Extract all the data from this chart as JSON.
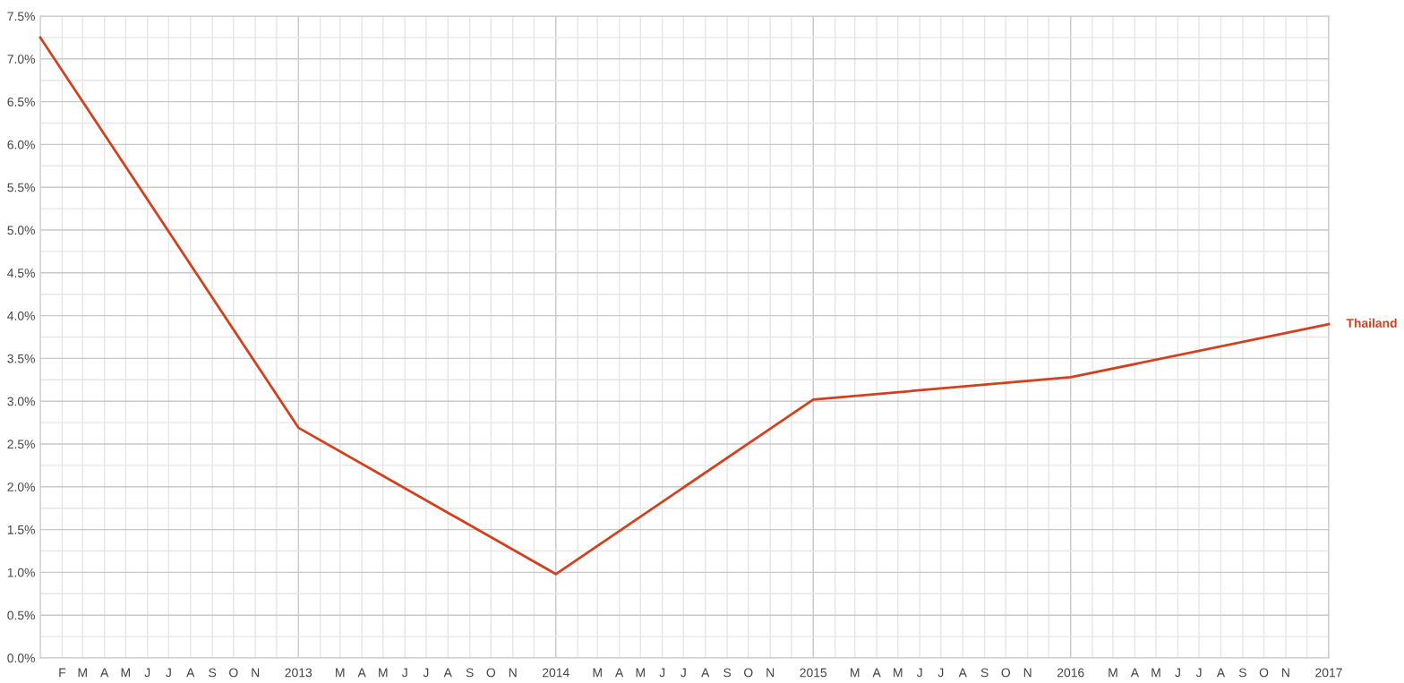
{
  "chart_data": {
    "type": "line",
    "x": [
      "2012-01",
      "2013-01",
      "2014-01",
      "2015-01",
      "2016-01",
      "2017-01"
    ],
    "series": [
      {
        "name": "Thailand",
        "color": "#d2401e",
        "values": [
          7.25,
          2.69,
          0.98,
          3.02,
          3.28,
          3.9
        ]
      }
    ],
    "xlim": [
      "2012-01",
      "2017-01"
    ],
    "xticks": [
      {
        "value": "2012-01",
        "label": null
      },
      {
        "value": "2012-02",
        "label": "F"
      },
      {
        "value": "2012-03",
        "label": "M"
      },
      {
        "value": "2012-04",
        "label": "A"
      },
      {
        "value": "2012-05",
        "label": "M"
      },
      {
        "value": "2012-06",
        "label": "J"
      },
      {
        "value": "2012-07",
        "label": "J"
      },
      {
        "value": "2012-08",
        "label": "A"
      },
      {
        "value": "2012-09",
        "label": "S"
      },
      {
        "value": "2012-10",
        "label": "O"
      },
      {
        "value": "2012-11",
        "label": "N"
      },
      {
        "value": "2012-12",
        "label": null
      },
      {
        "value": "2013-01",
        "label": "2013"
      },
      {
        "value": "2013-02",
        "label": null
      },
      {
        "value": "2013-03",
        "label": "M"
      },
      {
        "value": "2013-04",
        "label": "A"
      },
      {
        "value": "2013-05",
        "label": "M"
      },
      {
        "value": "2013-06",
        "label": "J"
      },
      {
        "value": "2013-07",
        "label": "J"
      },
      {
        "value": "2013-08",
        "label": "A"
      },
      {
        "value": "2013-09",
        "label": "S"
      },
      {
        "value": "2013-10",
        "label": "O"
      },
      {
        "value": "2013-11",
        "label": "N"
      },
      {
        "value": "2013-12",
        "label": null
      },
      {
        "value": "2014-01",
        "label": "2014"
      },
      {
        "value": "2014-02",
        "label": null
      },
      {
        "value": "2014-03",
        "label": "M"
      },
      {
        "value": "2014-04",
        "label": "A"
      },
      {
        "value": "2014-05",
        "label": "M"
      },
      {
        "value": "2014-06",
        "label": "J"
      },
      {
        "value": "2014-07",
        "label": "J"
      },
      {
        "value": "2014-08",
        "label": "A"
      },
      {
        "value": "2014-09",
        "label": "S"
      },
      {
        "value": "2014-10",
        "label": "O"
      },
      {
        "value": "2014-11",
        "label": "N"
      },
      {
        "value": "2014-12",
        "label": null
      },
      {
        "value": "2015-01",
        "label": "2015"
      },
      {
        "value": "2015-02",
        "label": null
      },
      {
        "value": "2015-03",
        "label": "M"
      },
      {
        "value": "2015-04",
        "label": "A"
      },
      {
        "value": "2015-05",
        "label": "M"
      },
      {
        "value": "2015-06",
        "label": "J"
      },
      {
        "value": "2015-07",
        "label": "J"
      },
      {
        "value": "2015-08",
        "label": "A"
      },
      {
        "value": "2015-09",
        "label": "S"
      },
      {
        "value": "2015-10",
        "label": "O"
      },
      {
        "value": "2015-11",
        "label": "N"
      },
      {
        "value": "2015-12",
        "label": null
      },
      {
        "value": "2016-01",
        "label": "2016"
      },
      {
        "value": "2016-02",
        "label": null
      },
      {
        "value": "2016-03",
        "label": "M"
      },
      {
        "value": "2016-04",
        "label": "A"
      },
      {
        "value": "2016-05",
        "label": "M"
      },
      {
        "value": "2016-06",
        "label": "J"
      },
      {
        "value": "2016-07",
        "label": "J"
      },
      {
        "value": "2016-08",
        "label": "A"
      },
      {
        "value": "2016-09",
        "label": "S"
      },
      {
        "value": "2016-10",
        "label": "O"
      },
      {
        "value": "2016-11",
        "label": "N"
      },
      {
        "value": "2016-12",
        "label": null
      },
      {
        "value": "2017-01",
        "label": "2017"
      }
    ],
    "ylim": [
      0,
      7.5
    ],
    "yticks": [
      {
        "value": 0,
        "label": "0.0%"
      },
      {
        "value": 0.25,
        "label": null
      },
      {
        "value": 0.5,
        "label": "0.5%"
      },
      {
        "value": 0.75,
        "label": null
      },
      {
        "value": 1.0,
        "label": "1.0%"
      },
      {
        "value": 1.25,
        "label": null
      },
      {
        "value": 1.5,
        "label": "1.5%"
      },
      {
        "value": 1.75,
        "label": null
      },
      {
        "value": 2.0,
        "label": "2.0%"
      },
      {
        "value": 2.25,
        "label": null
      },
      {
        "value": 2.5,
        "label": "2.5%"
      },
      {
        "value": 2.75,
        "label": null
      },
      {
        "value": 3.0,
        "label": "3.0%"
      },
      {
        "value": 3.25,
        "label": null
      },
      {
        "value": 3.5,
        "label": "3.5%"
      },
      {
        "value": 3.75,
        "label": null
      },
      {
        "value": 4.0,
        "label": "4.0%"
      },
      {
        "value": 4.25,
        "label": null
      },
      {
        "value": 4.5,
        "label": "4.5%"
      },
      {
        "value": 4.75,
        "label": null
      },
      {
        "value": 5.0,
        "label": "5.0%"
      },
      {
        "value": 5.25,
        "label": null
      },
      {
        "value": 5.5,
        "label": "5.5%"
      },
      {
        "value": 5.75,
        "label": null
      },
      {
        "value": 6.0,
        "label": "6.0%"
      },
      {
        "value": 6.25,
        "label": null
      },
      {
        "value": 6.5,
        "label": "6.5%"
      },
      {
        "value": 6.75,
        "label": null
      },
      {
        "value": 7.0,
        "label": "7.0%"
      },
      {
        "value": 7.25,
        "label": null
      },
      {
        "value": 7.5,
        "label": "7.5%"
      }
    ],
    "grid": true,
    "marker": "none",
    "line_style": "solid"
  }
}
